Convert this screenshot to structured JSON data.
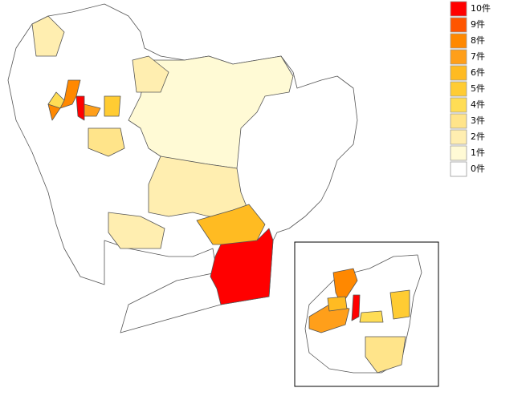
{
  "legend": [
    {
      "value": 10,
      "label": "10件",
      "color": "#ff0000"
    },
    {
      "value": 9,
      "label": "9件",
      "color": "#ff5500"
    },
    {
      "value": 8,
      "label": "8件",
      "color": "#ff8800"
    },
    {
      "value": 7,
      "label": "7件",
      "color": "#ff9f1a"
    },
    {
      "value": 6,
      "label": "6件",
      "color": "#ffbb22"
    },
    {
      "value": 5,
      "label": "5件",
      "color": "#ffcc33"
    },
    {
      "value": 4,
      "label": "4件",
      "color": "#ffdd55"
    },
    {
      "value": 3,
      "label": "3件",
      "color": "#ffe48a"
    },
    {
      "value": 2,
      "label": "2件",
      "color": "#ffeeb0"
    },
    {
      "value": 1,
      "label": "1件",
      "color": "#fffad5"
    },
    {
      "value": 0,
      "label": "0件",
      "color": "#ffffff"
    }
  ],
  "regions": [
    0,
    1,
    2,
    6,
    10,
    10,
    8,
    2,
    2,
    3,
    2,
    5,
    7,
    4,
    0,
    8,
    10,
    7,
    3,
    6,
    5,
    4
  ]
}
